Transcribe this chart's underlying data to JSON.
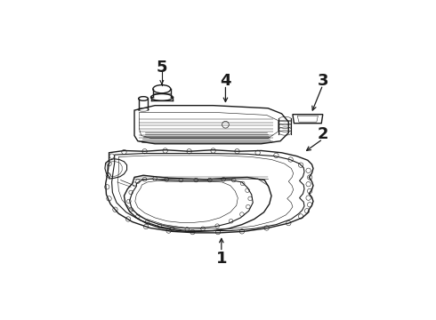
{
  "background_color": "#ffffff",
  "line_color": "#1a1a1a",
  "figsize": [
    4.9,
    3.6
  ],
  "dpi": 100,
  "label_fontsize": 11,
  "lw": 1.0,
  "tlw": 0.6
}
